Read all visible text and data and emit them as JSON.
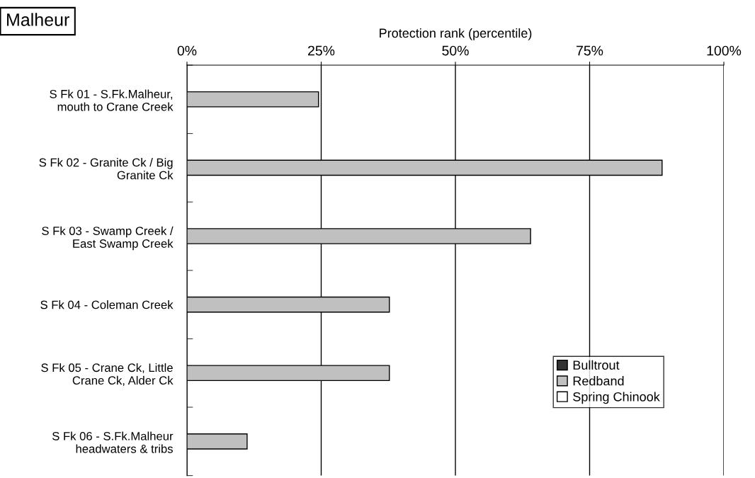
{
  "chart_data": {
    "type": "bar",
    "orientation": "horizontal",
    "title": "Malheur",
    "xlabel": "Protection rank (percentile)",
    "categories": [
      "S Fk 01 - S.Fk.Malheur,\nmouth to Crane Creek",
      "S Fk 02 - Granite Ck / Big\nGranite Ck",
      "S Fk 03 - Swamp Creek /\nEast Swamp Creek",
      "S Fk 04 - Coleman Creek",
      "S Fk 05 - Crane Ck, Little\nCrane Ck, Alder Ck",
      "S Fk 06 - S.Fk.Malheur\nheadwaters & tribs"
    ],
    "series": [
      {
        "name": "Bulltrout",
        "color": "#333333",
        "values": [
          null,
          null,
          null,
          null,
          null,
          null
        ]
      },
      {
        "name": "Redband",
        "color": "#c0c0c0",
        "values": [
          24.5,
          88.5,
          64.0,
          37.7,
          37.7,
          11.2
        ]
      },
      {
        "name": "Spring Chinook",
        "color": "#ffffff",
        "values": [
          null,
          null,
          null,
          null,
          null,
          null
        ]
      }
    ],
    "xlim": [
      0,
      100
    ],
    "xticks": [
      {
        "value": 0,
        "label": "0%"
      },
      {
        "value": 25,
        "label": "25%"
      },
      {
        "value": 50,
        "label": "50%"
      },
      {
        "value": 75,
        "label": "75%"
      },
      {
        "value": 100,
        "label": "100%"
      }
    ],
    "grid": "x",
    "legend": "bottom right"
  }
}
